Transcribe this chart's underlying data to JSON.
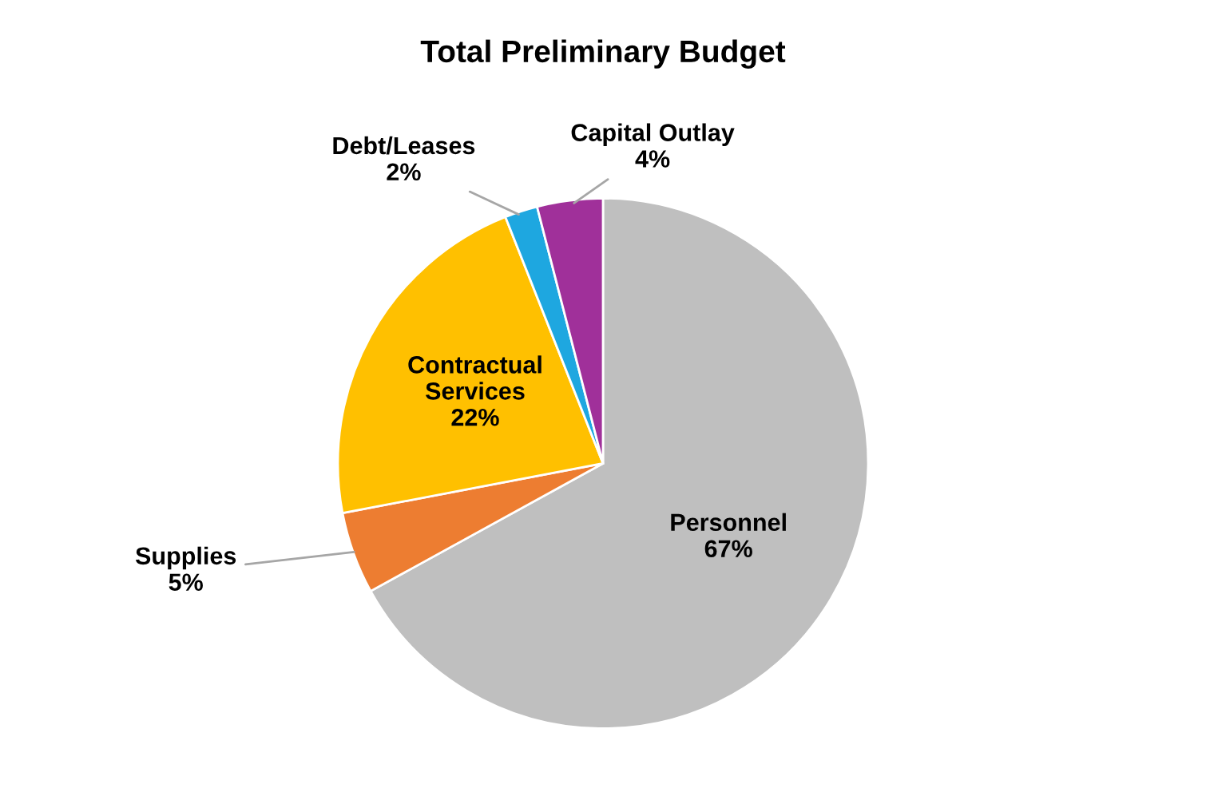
{
  "chart_data": {
    "type": "pie",
    "title": "Total Preliminary Budget",
    "categories": [
      "Personnel",
      "Supplies",
      "Contractual Services",
      "Debt/Leases",
      "Capital Outlay"
    ],
    "values": [
      67,
      5,
      22,
      2,
      4
    ],
    "value_labels": [
      "67%",
      "5%",
      "22%",
      "2%",
      "4%"
    ],
    "colors": [
      "#bfbfbf",
      "#ed7d31",
      "#ffc000",
      "#1ea7e0",
      "#a0309a"
    ],
    "legend": false
  }
}
